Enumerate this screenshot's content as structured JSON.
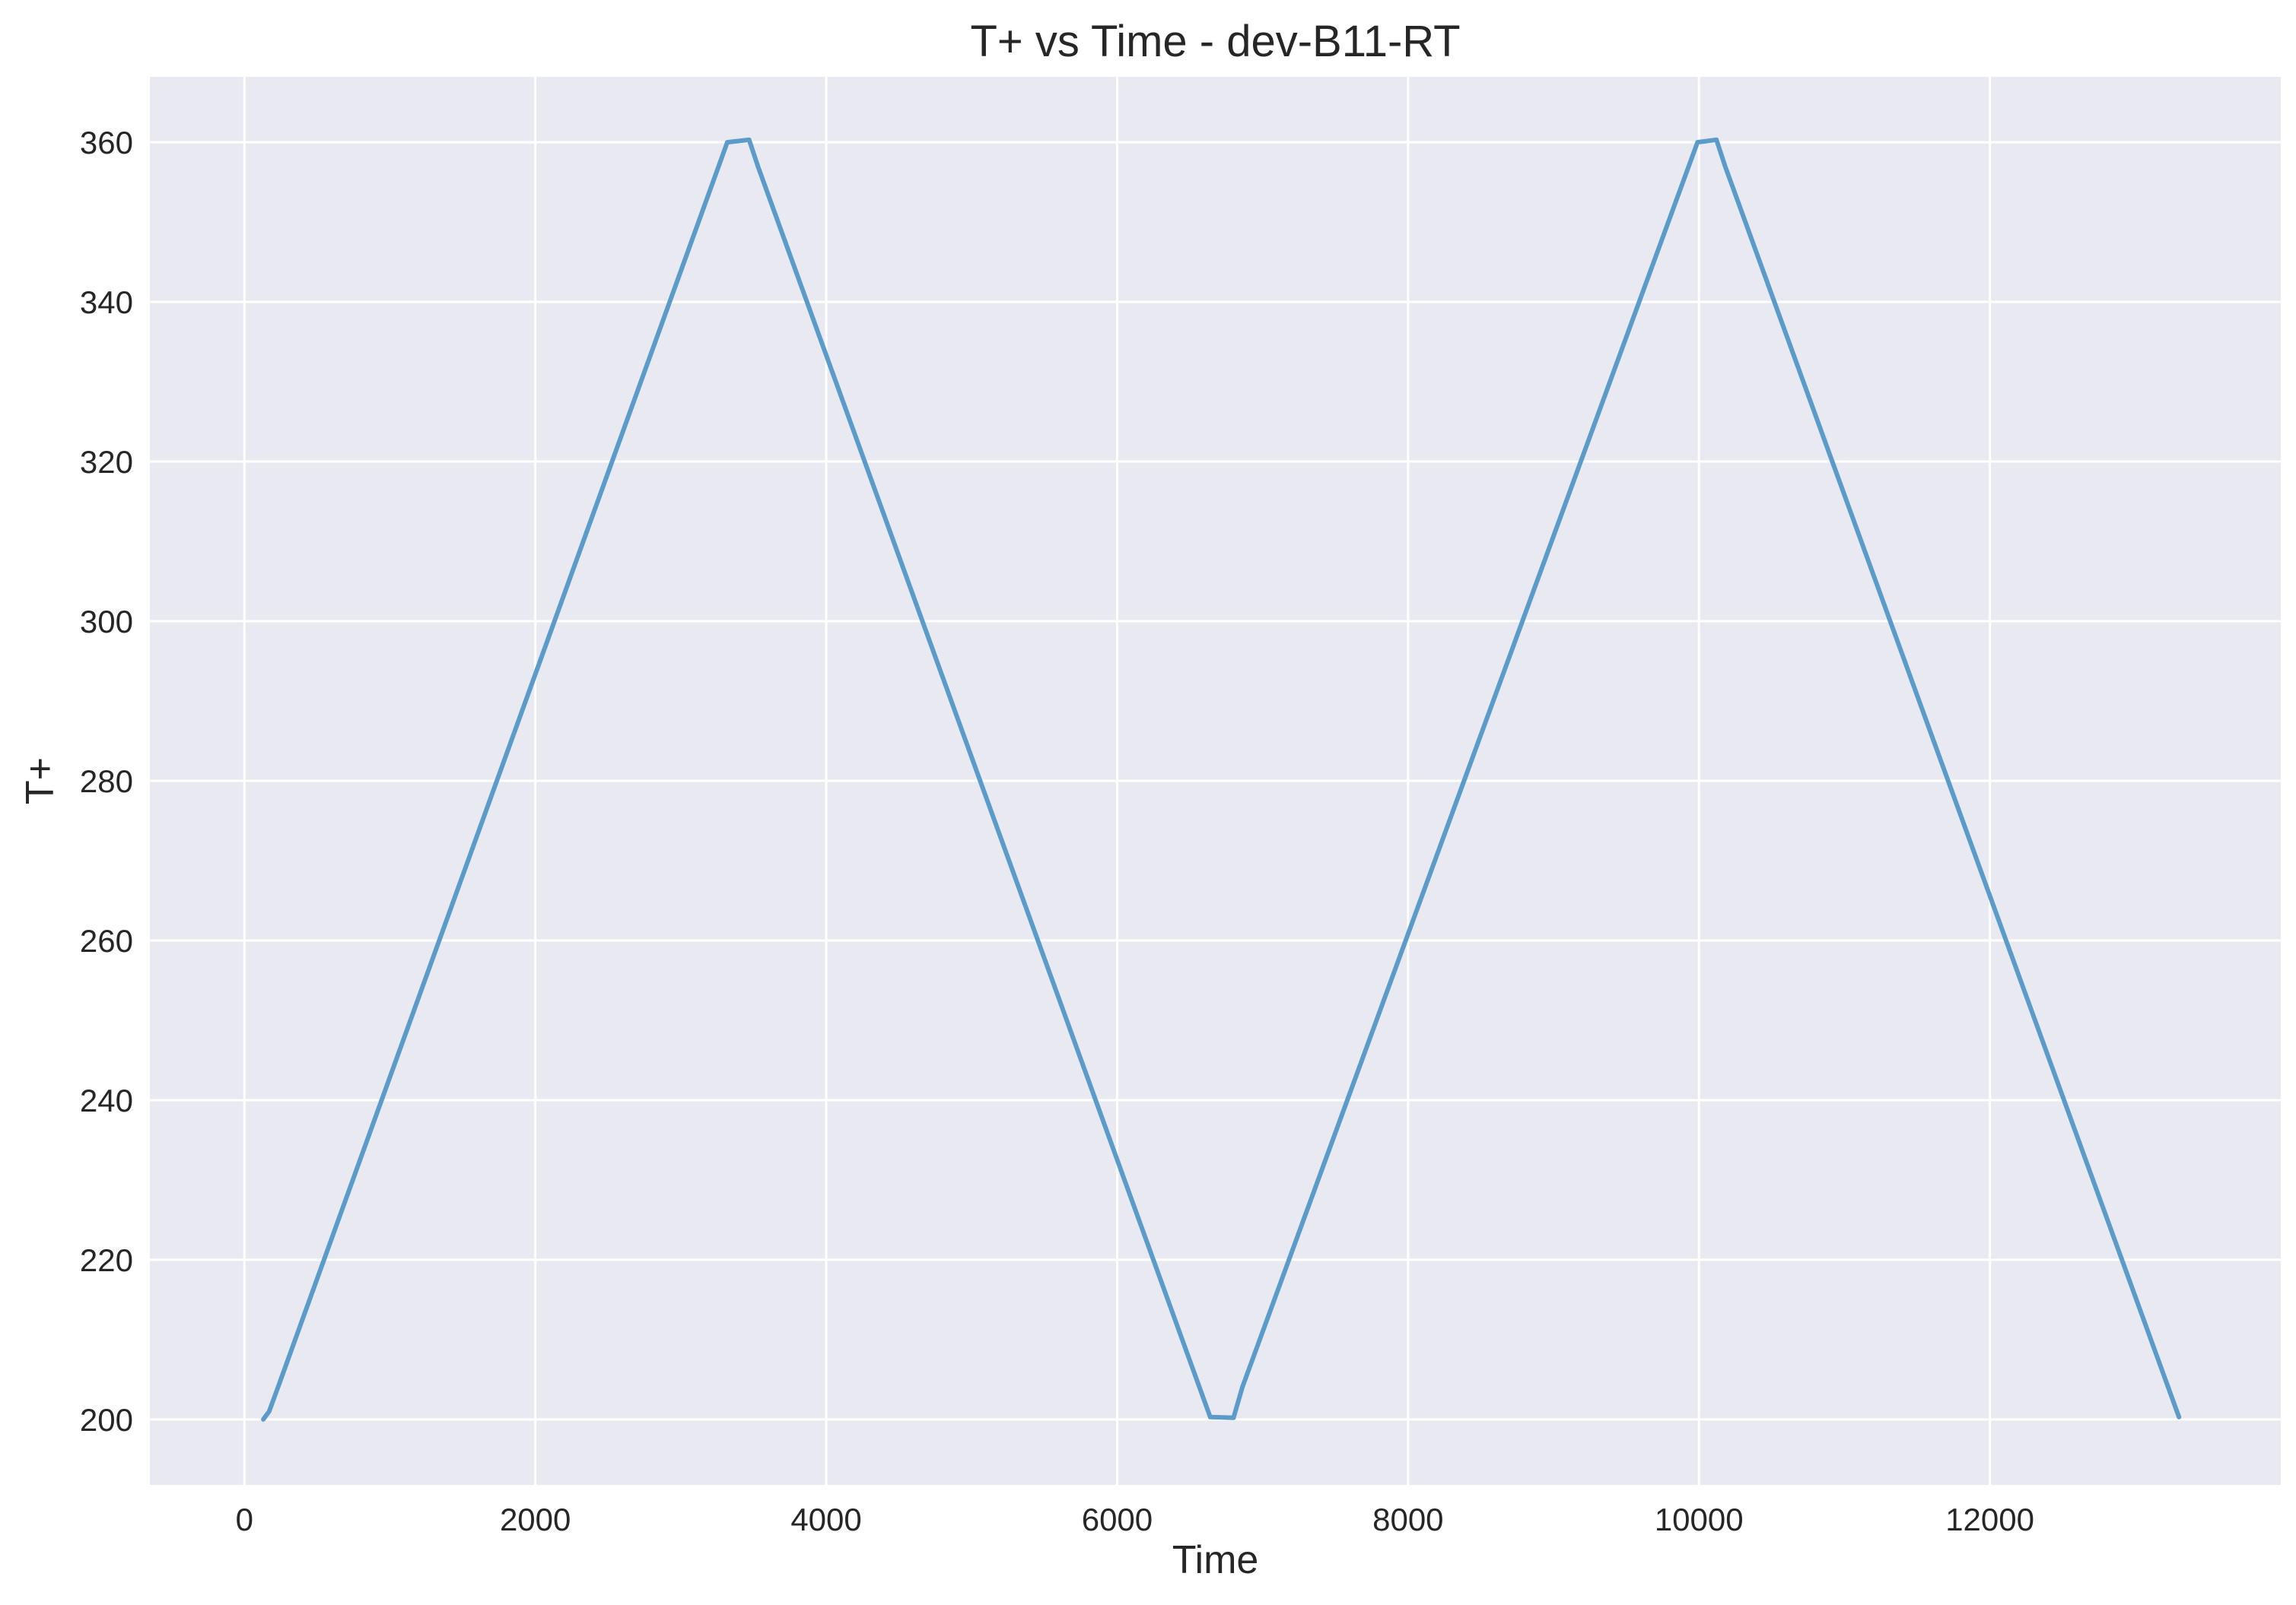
{
  "chart_data": {
    "type": "line",
    "title": "T+ vs Time - dev-B11-RT",
    "xlabel": "Time",
    "ylabel": "T+",
    "xlim": [
      -650,
      14000
    ],
    "ylim": [
      191.8,
      368.2
    ],
    "xticks": [
      0,
      2000,
      4000,
      6000,
      8000,
      10000,
      12000
    ],
    "yticks": [
      200,
      220,
      240,
      260,
      280,
      300,
      320,
      340,
      360
    ],
    "grid": true,
    "legend": "none",
    "colors": {
      "line": "#5b9bc9",
      "plot_background": "#e9e9f1",
      "grid": "#ffffff",
      "text": "#262626"
    },
    "series": [
      {
        "x": [
          130,
          170,
          230,
          3320,
          3470,
          3530,
          6640,
          6800,
          6860,
          9990,
          10120,
          10180,
          13300
        ],
        "y": [
          200,
          201,
          204,
          360,
          360.3,
          357,
          200.3,
          200.2,
          204,
          360,
          360.3,
          357,
          200.3
        ]
      }
    ]
  }
}
